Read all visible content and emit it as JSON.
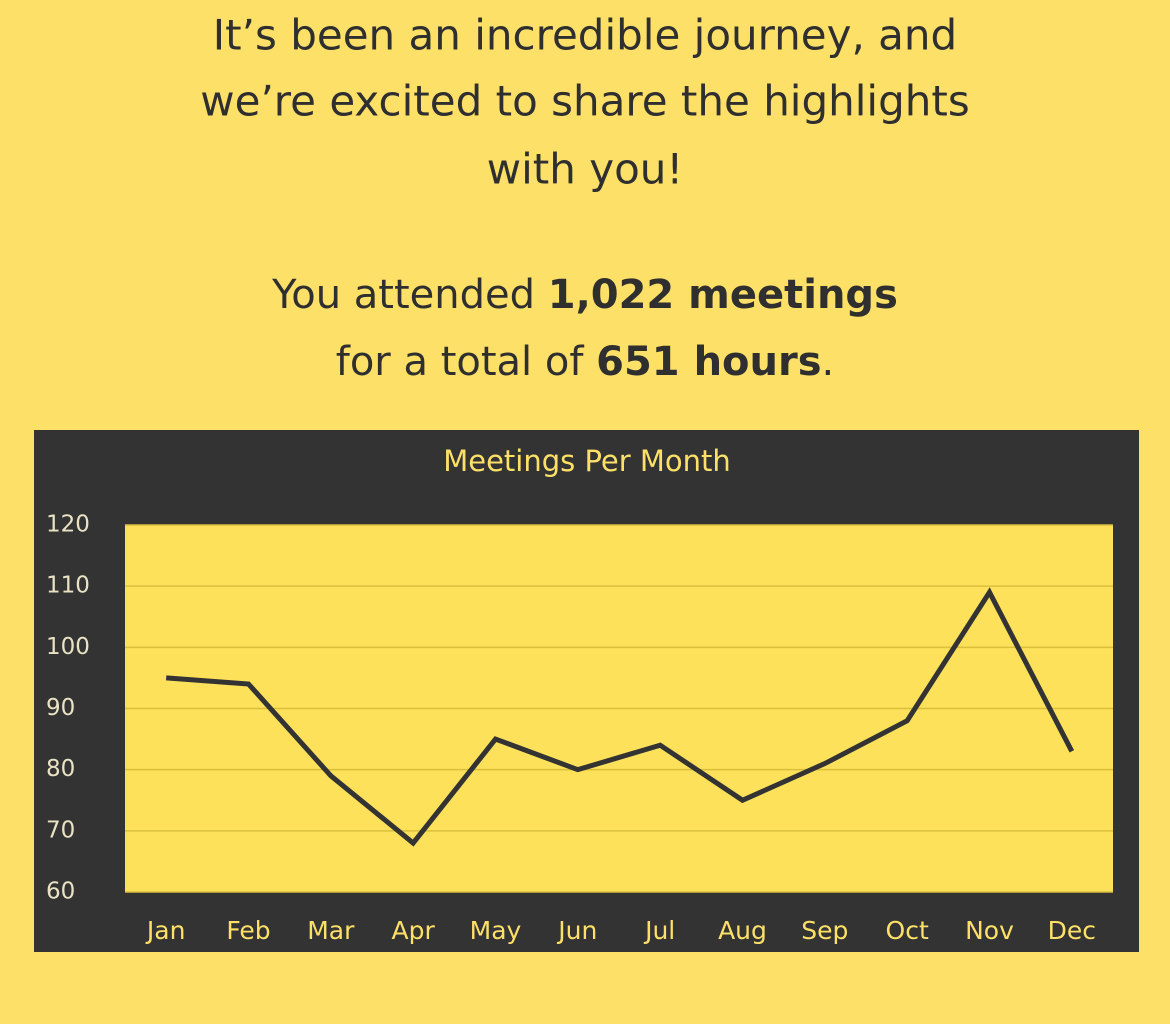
{
  "intro": {
    "lines": [
      "It’s been an incredible journey, and",
      "we’re excited to share the highlights",
      "with you!"
    ]
  },
  "summary": {
    "line1": [
      "You attended ",
      "1,022 meetings"
    ],
    "line2": [
      "for a total of ",
      "651 hours",
      "."
    ]
  },
  "chart_data": {
    "type": "line",
    "title": "Meetings Per Month",
    "categories": [
      "Jan",
      "Feb",
      "Mar",
      "Apr",
      "May",
      "Jun",
      "Jul",
      "Aug",
      "Sep",
      "Oct",
      "Nov",
      "Dec"
    ],
    "values": [
      95,
      94,
      79,
      68,
      85,
      80,
      84,
      75,
      81,
      88,
      109,
      83
    ],
    "color": "#333333",
    "ylim": [
      60,
      120
    ],
    "yticks": [
      60,
      70,
      80,
      90,
      100,
      110,
      120
    ],
    "grid": true
  }
}
